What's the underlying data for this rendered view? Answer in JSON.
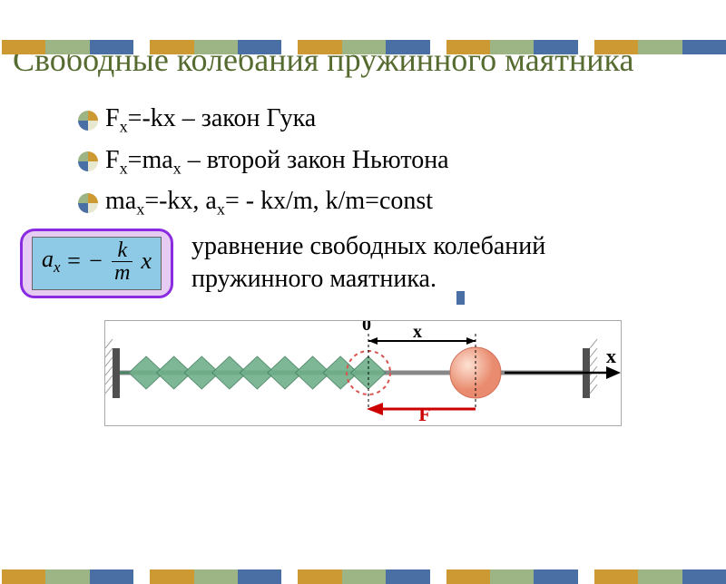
{
  "border": {
    "segment_colors": [
      "#cc9933",
      "#9db584",
      "#4a6fa5"
    ],
    "segment_count": 5
  },
  "title": "Свободные колебания пружинного маятника",
  "bullets": [
    {
      "text_html": "F<sub>x</sub>=-kx – закон Гука"
    },
    {
      "text_html": "F<sub>x</sub>=ma<sub>x</sub> – второй закон Ньютона"
    },
    {
      "text_html": "ma<sub>x</sub>=-kx, a<sub>x</sub>= - kx/m,  k/m=const"
    }
  ],
  "bullet_icon": {
    "colors": [
      "#cc9933",
      "#e8e8d0",
      "#4a6fa5",
      "#9db584"
    ]
  },
  "equation": {
    "lhs": "a",
    "lhs_sub": "x",
    "eq": "= −",
    "frac_num": "k",
    "frac_den": "m",
    "rhs": "x",
    "box_border": "#8a2be2",
    "box_bg": "#e6ccf2",
    "inner_bg": "#8ecae6"
  },
  "equation_caption": "уравнение свободных колебаний пружинного маятника.",
  "diagram": {
    "zero_label": "0",
    "x_label": "x",
    "x_axis_label": "x",
    "force_label": "F",
    "spring_color": "#6fb08a",
    "ball_fill": "#f4a98f",
    "ball_stroke": "#d1705a",
    "wall_color": "#505050",
    "arrow_color": "#000000",
    "force_color": "#cc0000",
    "zero_circle": "#d9534f"
  }
}
